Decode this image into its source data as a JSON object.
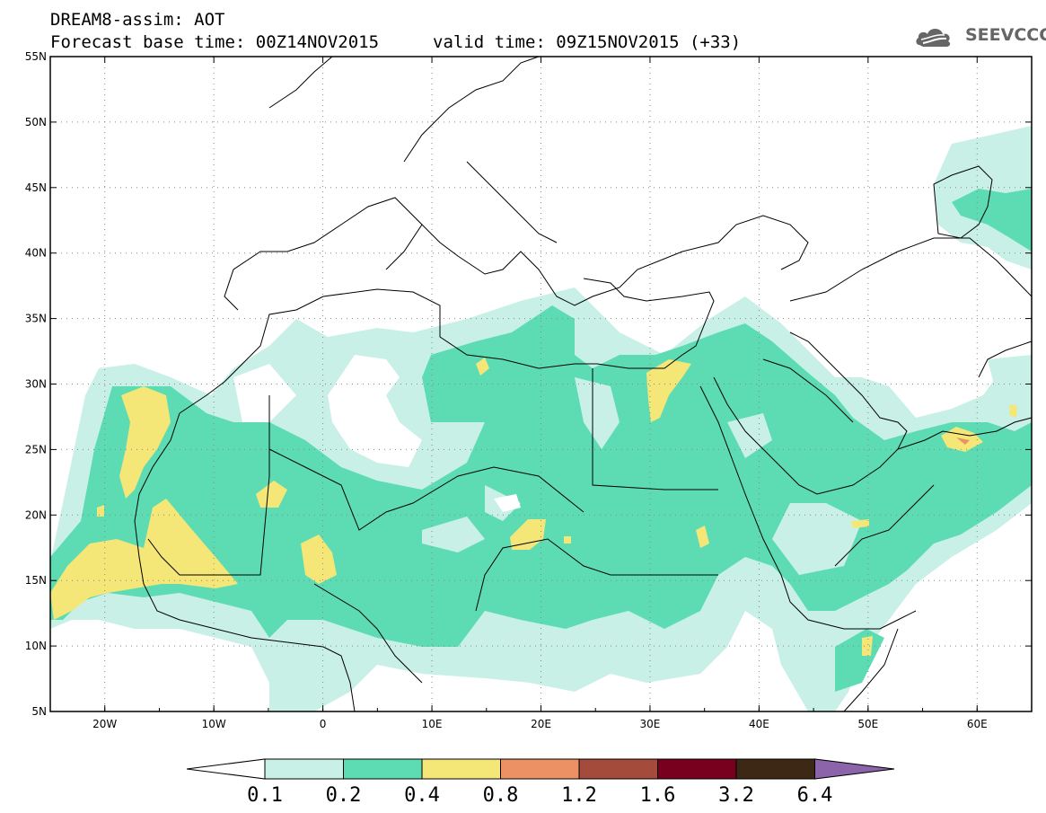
{
  "title": {
    "line1": "DREAM8-assim: AOT",
    "base_time": "Forecast base time: 00Z14NOV2015",
    "valid_time": "valid time: 09Z15NOV2015 (+33)"
  },
  "logo": {
    "text": "SEEVCCC",
    "icon": "cloud-icon"
  },
  "map": {
    "lon_range": [
      -25,
      65
    ],
    "lat_range": [
      5,
      55
    ],
    "lat_ticks": [
      "55N",
      "50N",
      "45N",
      "40N",
      "35N",
      "30N",
      "25N",
      "20N",
      "15N",
      "10N",
      "5N"
    ],
    "lon_ticks": [
      "20W",
      "10W",
      "0",
      "10E",
      "20E",
      "30E",
      "40E",
      "50E",
      "60E"
    ],
    "gridlines": "dotted"
  },
  "colorbar": {
    "levels": [
      "0.1",
      "0.2",
      "0.4",
      "0.8",
      "1.2",
      "1.6",
      "3.2",
      "6.4"
    ],
    "colors": [
      "#ffffff",
      "#c8f0e6",
      "#5ddcb4",
      "#f5e678",
      "#eb9164",
      "#a54b3c",
      "#78001e",
      "#3c2814",
      "#8c64aa"
    ]
  }
}
